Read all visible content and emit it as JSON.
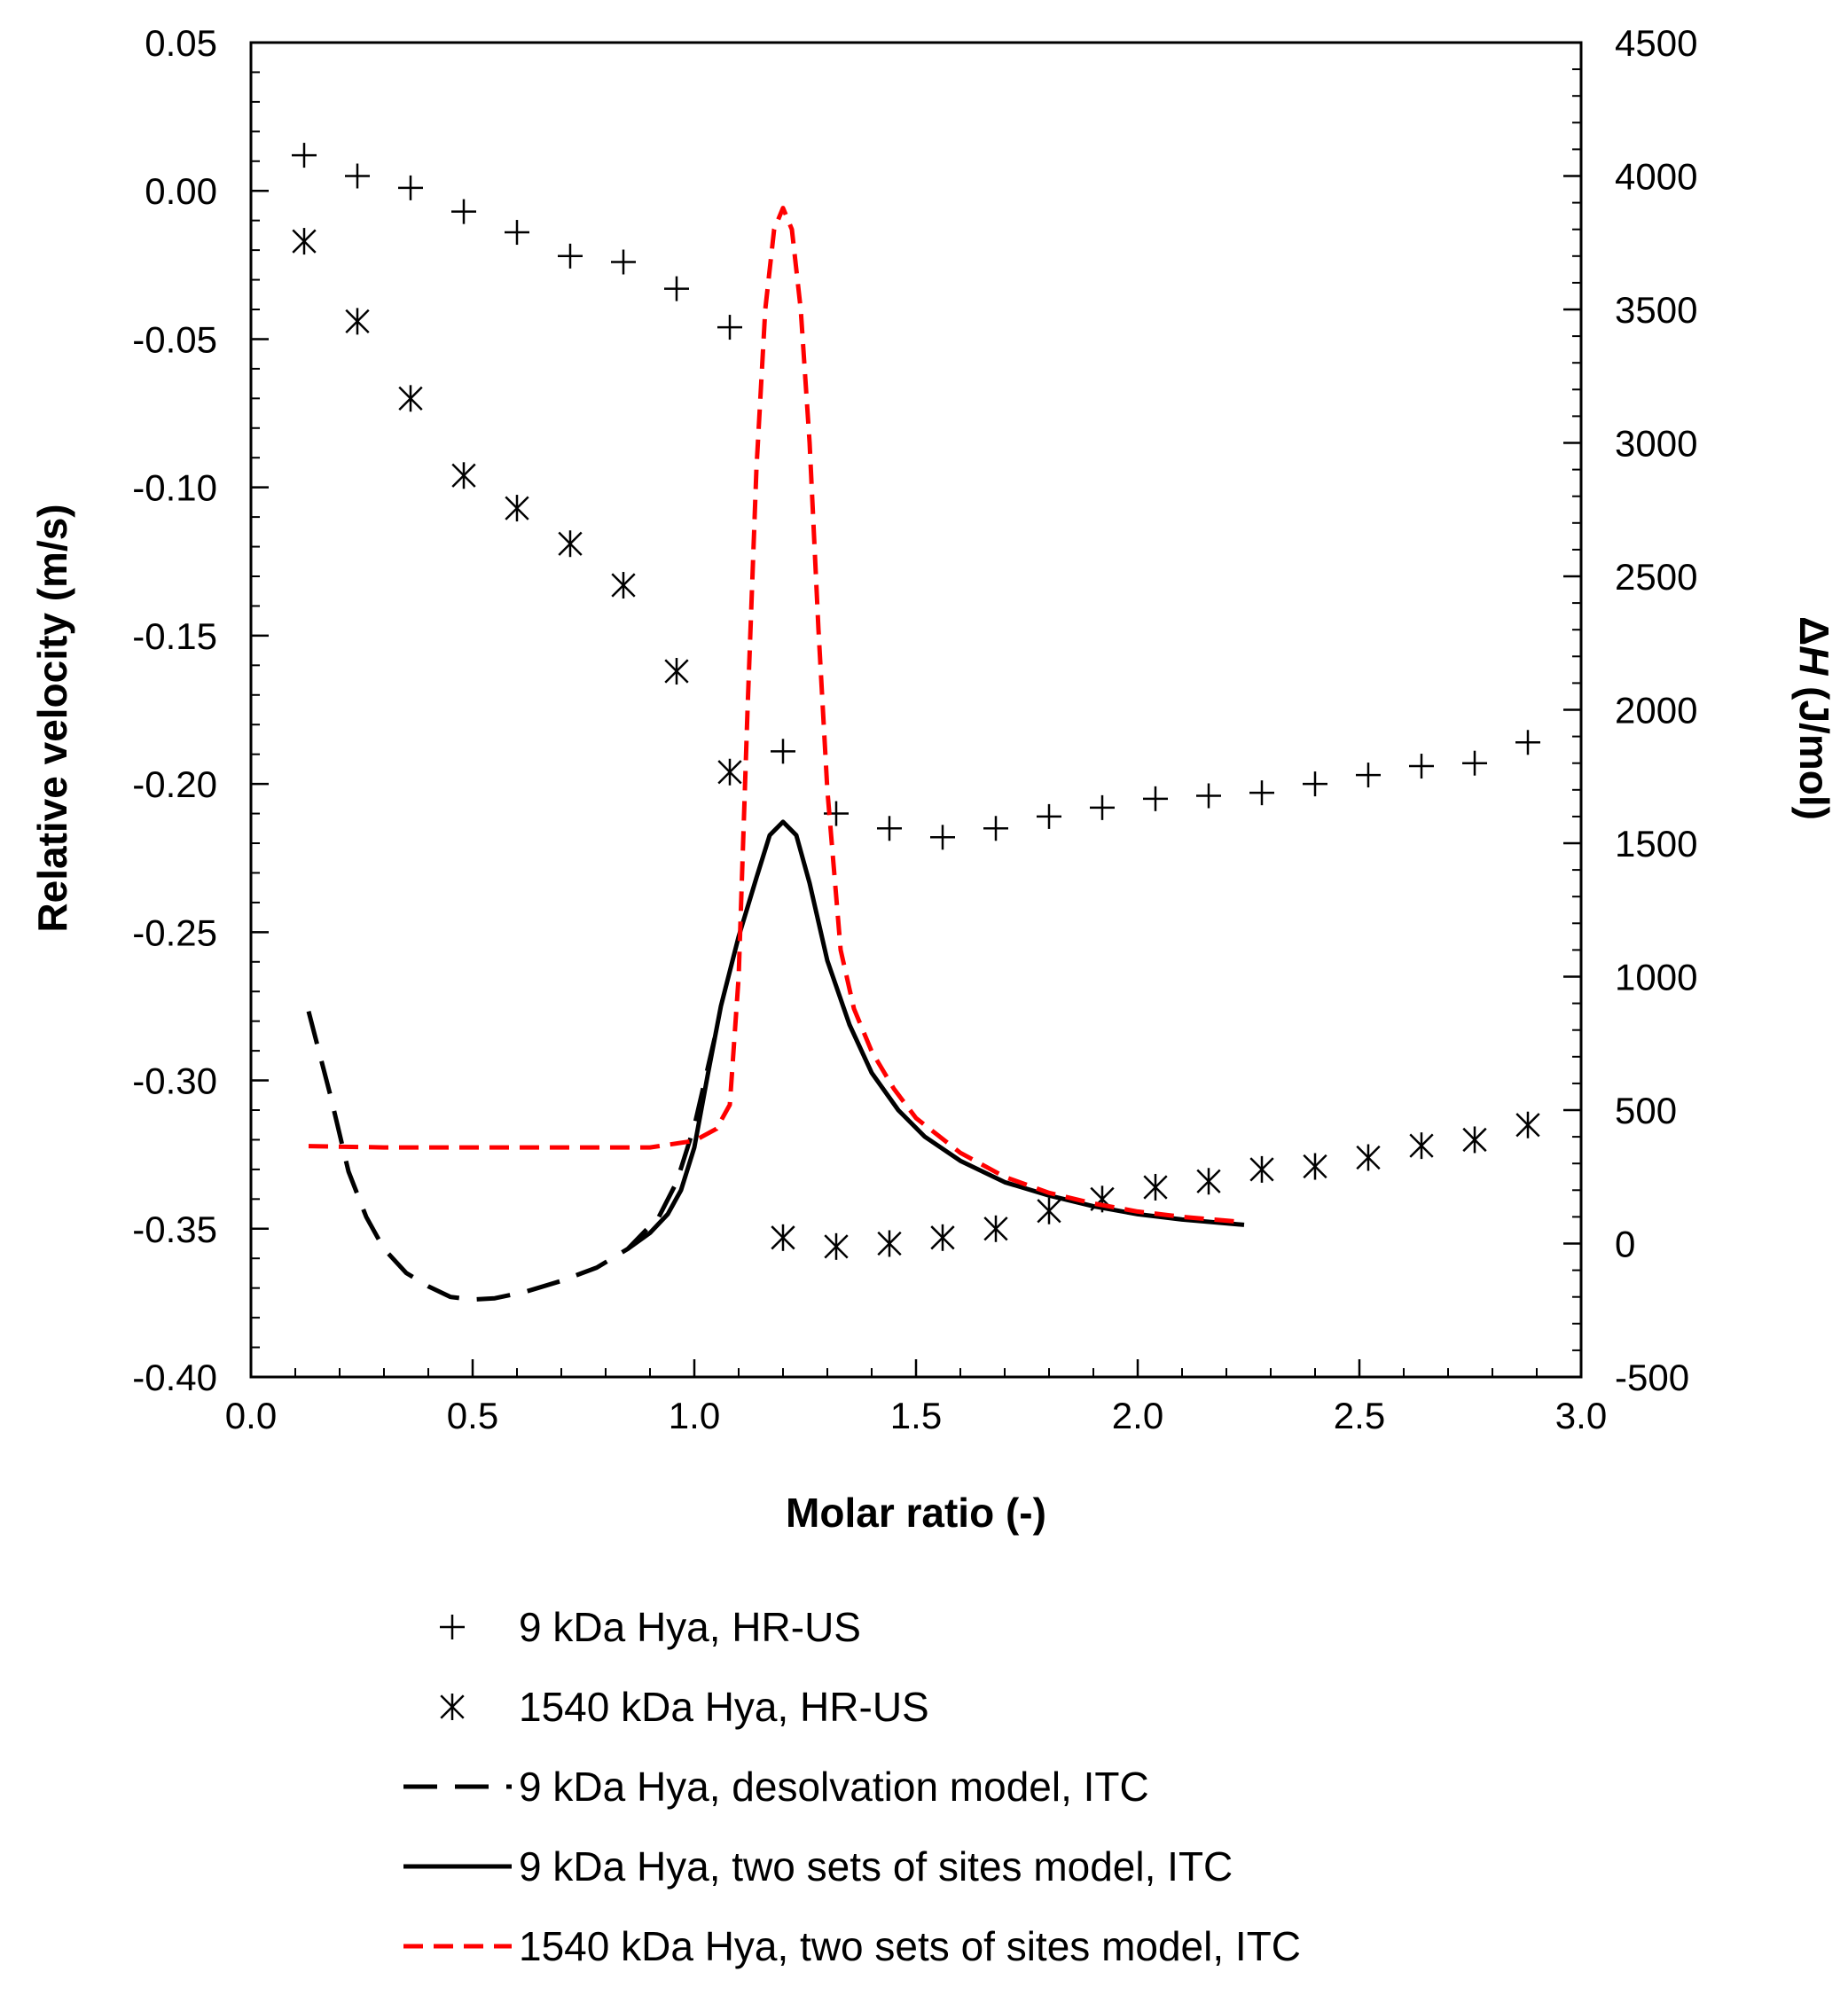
{
  "chart_data": {
    "type": "scatter",
    "title": "",
    "xlabel": "Molar ratio (-)",
    "ylabel": "Relative velocity (m/s)",
    "y2label_prefix": "Δ",
    "y2label_var": "H",
    "y2label_unit": " (J/mol)",
    "xlim": [
      0.0,
      3.0
    ],
    "ylim": [
      -0.4,
      0.05
    ],
    "y2lim": [
      -500,
      4500
    ],
    "x_ticks": [
      "0.0",
      "0.5",
      "1.0",
      "1.5",
      "2.0",
      "2.5",
      "3.0"
    ],
    "y_ticks": [
      "0.05",
      "0.00",
      "-0.05",
      "-0.10",
      "-0.15",
      "-0.20",
      "-0.25",
      "-0.30",
      "-0.35",
      "-0.40"
    ],
    "y2_ticks": [
      "4500",
      "4000",
      "3500",
      "3000",
      "2500",
      "2000",
      "1500",
      "1000",
      "500",
      "0",
      "-500"
    ],
    "grid": false,
    "legend_position": "bottom",
    "series": [
      {
        "name": "9 kDa Hya, HR-US",
        "axis": "left",
        "kind": "marker",
        "marker": "plus",
        "color": "#000000",
        "x": [
          0.12,
          0.24,
          0.36,
          0.48,
          0.6,
          0.72,
          0.84,
          0.96,
          1.08,
          1.2,
          1.32,
          1.44,
          1.56,
          1.68,
          1.8,
          1.92,
          2.04,
          2.16,
          2.28,
          2.4,
          2.52,
          2.64,
          2.76,
          2.88
        ],
        "y": [
          0.012,
          0.005,
          0.001,
          -0.007,
          -0.014,
          -0.022,
          -0.024,
          -0.033,
          -0.046,
          -0.189,
          -0.21,
          -0.215,
          -0.218,
          -0.215,
          -0.211,
          -0.208,
          -0.205,
          -0.204,
          -0.203,
          -0.2,
          -0.197,
          -0.194,
          -0.193,
          -0.186
        ]
      },
      {
        "name": "1540 kDa Hya, HR-US",
        "axis": "left",
        "kind": "marker",
        "marker": "asterisk",
        "color": "#000000",
        "x": [
          0.12,
          0.24,
          0.36,
          0.48,
          0.6,
          0.72,
          0.84,
          0.96,
          1.08,
          1.2,
          1.32,
          1.44,
          1.56,
          1.68,
          1.8,
          1.92,
          2.04,
          2.16,
          2.28,
          2.4,
          2.52,
          2.64,
          2.76,
          2.88
        ],
        "y": [
          -0.017,
          -0.044,
          -0.07,
          -0.096,
          -0.107,
          -0.119,
          -0.133,
          -0.162,
          -0.196,
          -0.353,
          -0.356,
          -0.355,
          -0.353,
          -0.35,
          -0.344,
          -0.34,
          -0.336,
          -0.334,
          -0.33,
          -0.329,
          -0.326,
          -0.322,
          -0.32,
          -0.315
        ]
      },
      {
        "name": "9 kDa Hya, desolvation model, ITC",
        "axis": "right",
        "kind": "line",
        "dash": "dashed-long",
        "color": "#000000",
        "x": [
          0.13,
          0.18,
          0.22,
          0.26,
          0.3,
          0.35,
          0.4,
          0.45,
          0.5,
          0.55,
          0.62,
          0.7,
          0.78,
          0.85,
          0.92,
          0.96,
          1.0,
          1.05
        ],
        "y": [
          870,
          550,
          270,
          100,
          -20,
          -110,
          -160,
          -200,
          -210,
          -205,
          -180,
          -140,
          -90,
          -20,
          100,
          230,
          440,
          800
        ]
      },
      {
        "name": "9 kDa Hya, two sets of sites model, ITC",
        "axis": "right",
        "kind": "line",
        "dash": "solid",
        "color": "#000000",
        "x": [
          0.85,
          0.9,
          0.94,
          0.97,
          1.0,
          1.03,
          1.06,
          1.1,
          1.14,
          1.17,
          1.2,
          1.23,
          1.26,
          1.3,
          1.35,
          1.4,
          1.46,
          1.52,
          1.6,
          1.7,
          1.8,
          1.9,
          2.0,
          2.1,
          2.24
        ],
        "y": [
          -20,
          40,
          110,
          200,
          360,
          630,
          890,
          1150,
          1370,
          1530,
          1580,
          1530,
          1350,
          1060,
          820,
          640,
          500,
          400,
          310,
          230,
          180,
          140,
          110,
          90,
          70
        ]
      },
      {
        "name": "1540 kDa Hya, two sets of sites model, ITC",
        "axis": "right",
        "kind": "line",
        "dash": "dashed",
        "color": "#ff0000",
        "x": [
          0.13,
          0.3,
          0.5,
          0.7,
          0.9,
          1.0,
          1.05,
          1.08,
          1.1,
          1.12,
          1.14,
          1.16,
          1.18,
          1.2,
          1.22,
          1.24,
          1.26,
          1.28,
          1.3,
          1.33,
          1.36,
          1.4,
          1.45,
          1.5,
          1.6,
          1.7,
          1.8,
          1.9,
          2.0,
          2.1,
          2.24
        ],
        "y": [
          365,
          360,
          360,
          360,
          360,
          385,
          430,
          520,
          1000,
          2000,
          2900,
          3500,
          3800,
          3880,
          3800,
          3500,
          3000,
          2300,
          1700,
          1100,
          880,
          720,
          580,
          470,
          340,
          250,
          190,
          150,
          120,
          100,
          80
        ]
      }
    ]
  }
}
